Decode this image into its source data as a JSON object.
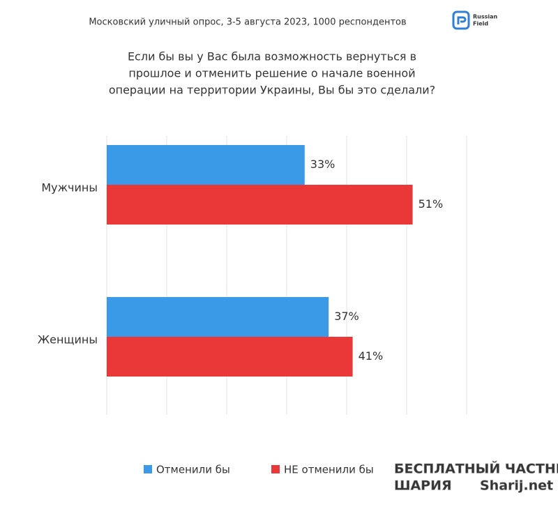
{
  "header": {
    "subtitle": "Московский уличный опрос, 3-5 августа 2023, 1000 респондентов",
    "logo": [
      "Russian",
      "Field"
    ]
  },
  "chart_data": {
    "type": "hbar",
    "title": [
      "Если бы вы у Вас была возможность вернуться в",
      "прошлое и отменить решение о начале военной",
      "операции на территории Украины, Вы бы это сделали?"
    ],
    "categories": [
      "Мужчины",
      "Женщины"
    ],
    "series": [
      {
        "name": "Отменили бы",
        "color": "#3b9ae8",
        "values": [
          33,
          37
        ],
        "value_labels": [
          "33%",
          "37%"
        ]
      },
      {
        "name": "НЕ отменили бы",
        "color": "#ea3838",
        "values": [
          51,
          41
        ],
        "value_labels": [
          "51%",
          "41%"
        ]
      }
    ],
    "xlim": [
      0,
      60
    ],
    "xticks": [
      0,
      10,
      20,
      30,
      40,
      50,
      60
    ],
    "grid": true,
    "legend": "bottom"
  },
  "watermark": [
    "БЕСПЛАТНЫЙ ЧАСТНЫЙ",
    "ШАРИЯ",
    "Sharij.net"
  ]
}
